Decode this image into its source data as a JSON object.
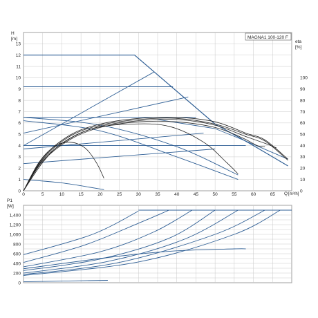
{
  "chart_data": [
    {
      "type": "line",
      "title": "MAGNA1 100-120 F",
      "ylabel": "H",
      "yunit": "[m]",
      "y2label": "eta",
      "y2unit": "[%]",
      "xlabel": "Q",
      "xunit": "[m³/h]",
      "xlim": [
        0,
        70
      ],
      "ylim": [
        0,
        14
      ],
      "y2lim": [
        0,
        140
      ],
      "xticks": [
        "0",
        "5",
        "10",
        "15",
        "20",
        "25",
        "30",
        "35",
        "40",
        "45",
        "50",
        "55",
        "60",
        "65"
      ],
      "yticks": [
        "0",
        "1",
        "2",
        "3",
        "4",
        "5",
        "6",
        "7",
        "8",
        "9",
        "10",
        "11",
        "12",
        "13"
      ],
      "y2ticks": [
        "0",
        "10",
        "20",
        "30",
        "40",
        "50",
        "60",
        "70",
        "80",
        "90",
        "100"
      ],
      "grid": true,
      "colors": {
        "pump": "#2f5f95",
        "eta": "#222222",
        "grid": "#c9c9c9"
      },
      "series": [
        {
          "kind": "max",
          "points": [
            [
              0,
              12
            ],
            [
              29,
              12
            ],
            [
              50,
              5.9
            ],
            [
              59,
              4.2
            ],
            [
              69,
              2.2
            ]
          ]
        },
        {
          "kind": "prop",
          "points": [
            [
              0,
              4
            ],
            [
              34,
              10.5
            ]
          ]
        },
        {
          "kind": "prop",
          "points": [
            [
              0,
              3.7
            ],
            [
              47,
              5.1
            ]
          ]
        },
        {
          "kind": "prop",
          "points": [
            [
              0,
              2.4
            ],
            [
              50,
              3.7
            ]
          ]
        },
        {
          "kind": "const",
          "points": [
            [
              0,
              9.2
            ],
            [
              39,
              9.2
            ]
          ]
        },
        {
          "kind": "const",
          "points": [
            [
              0,
              6.5
            ],
            [
              45,
              6.5
            ]
          ]
        },
        {
          "kind": "const",
          "points": [
            [
              0,
              4.0
            ],
            [
              58,
              4.0
            ]
          ]
        },
        {
          "kind": "pc",
          "points": [
            [
              0,
              5.1
            ],
            [
              43,
              8.3
            ]
          ]
        },
        {
          "kind": "pc",
          "points": [
            [
              0,
              6.2
            ],
            [
              20,
              5.3
            ],
            [
              40,
              3.0
            ],
            [
              56,
              1.0
            ]
          ]
        },
        {
          "kind": "pc",
          "points": [
            [
              0,
              6.5
            ],
            [
              20,
              5.8
            ],
            [
              40,
              3.9
            ],
            [
              56,
              1.4
            ]
          ]
        },
        {
          "kind": "pc",
          "points": [
            [
              0,
              1.0
            ],
            [
              10,
              0.7
            ],
            [
              21,
              0.1
            ]
          ]
        },
        {
          "kind": "max2",
          "points": [
            [
              35,
              6.3
            ],
            [
              50,
              5.5
            ],
            [
              58,
              4.4
            ],
            [
              69,
              2.8
            ]
          ]
        }
      ],
      "eta_series": [
        {
          "points": [
            [
              0,
              0
            ],
            [
              4,
              25
            ],
            [
              8,
              39
            ],
            [
              12,
              43
            ],
            [
              16,
              38
            ],
            [
              19,
              25
            ],
            [
              21,
              11
            ]
          ]
        },
        {
          "points": [
            [
              0,
              0
            ],
            [
              5,
              25
            ],
            [
              10,
              42
            ],
            [
              18,
              55
            ],
            [
              28,
              59
            ],
            [
              38,
              57
            ],
            [
              47,
              43
            ],
            [
              53,
              25
            ],
            [
              56,
              15
            ]
          ]
        },
        {
          "points": [
            [
              0,
              0
            ],
            [
              5,
              26
            ],
            [
              12,
              45
            ],
            [
              20,
              56
            ],
            [
              30,
              61
            ],
            [
              40,
              61
            ],
            [
              50,
              56
            ],
            [
              57,
              47
            ],
            [
              61,
              40
            ],
            [
              63,
              39
            ]
          ]
        },
        {
          "points": [
            [
              0,
              0
            ],
            [
              5,
              27
            ],
            [
              12,
              46
            ],
            [
              20,
              57
            ],
            [
              30,
              62
            ],
            [
              40,
              63
            ],
            [
              50,
              58
            ],
            [
              58,
              48
            ],
            [
              63,
              42
            ],
            [
              66,
              38
            ]
          ]
        },
        {
          "points": [
            [
              0,
              0
            ],
            [
              5,
              28
            ],
            [
              12,
              48
            ],
            [
              20,
              58
            ],
            [
              30,
              63
            ],
            [
              40,
              64
            ],
            [
              50,
              59
            ],
            [
              58,
              50
            ],
            [
              63,
              44
            ],
            [
              69,
              27
            ]
          ]
        },
        {
          "points": [
            [
              0,
              0
            ],
            [
              5,
              29
            ],
            [
              12,
              49
            ],
            [
              20,
              59
            ],
            [
              30,
              64
            ],
            [
              40,
              65
            ],
            [
              50,
              61
            ],
            [
              58,
              51
            ],
            [
              63,
              45
            ],
            [
              69,
              28
            ]
          ]
        }
      ]
    },
    {
      "type": "line",
      "ylabel": "P1",
      "yunit": "[W]",
      "xlim": [
        0,
        70
      ],
      "ylim": [
        0,
        1600
      ],
      "yticks": [
        "0",
        "200",
        "400",
        "600",
        "800",
        "1,000",
        "1,200",
        "1,400"
      ],
      "grid": true,
      "colors": {
        "pump": "#2f5f95"
      },
      "series": [
        {
          "points": [
            [
              0,
              580
            ],
            [
              18,
              1000
            ],
            [
              30,
              1480
            ]
          ]
        },
        {
          "points": [
            [
              0,
              420
            ],
            [
              16,
              780
            ],
            [
              30,
              1230
            ],
            [
              38,
              1500
            ]
          ]
        },
        {
          "points": [
            [
              0,
              330
            ],
            [
              20,
              640
            ],
            [
              34,
              1050
            ],
            [
              44,
              1500
            ]
          ]
        },
        {
          "points": [
            [
              0,
              250
            ],
            [
              20,
              490
            ],
            [
              38,
              920
            ],
            [
              50,
              1500
            ]
          ]
        },
        {
          "points": [
            [
              0,
              200
            ],
            [
              22,
              440
            ],
            [
              42,
              900
            ],
            [
              56,
              1500
            ]
          ]
        },
        {
          "points": [
            [
              0,
              170
            ],
            [
              25,
              420
            ],
            [
              50,
              1000
            ],
            [
              63,
              1500
            ]
          ]
        },
        {
          "points": [
            [
              0,
              150
            ],
            [
              30,
              430
            ],
            [
              55,
              1000
            ],
            [
              67,
              1500
            ]
          ]
        },
        {
          "points": [
            [
              0,
              290
            ],
            [
              25,
              550
            ],
            [
              40,
              660
            ],
            [
              55,
              700
            ],
            [
              58,
              700
            ]
          ]
        },
        {
          "points": [
            [
              0,
              20
            ],
            [
              22,
              50
            ]
          ]
        },
        {
          "points": [
            [
              30,
              1500
            ],
            [
              70,
              1500
            ]
          ]
        }
      ]
    }
  ]
}
